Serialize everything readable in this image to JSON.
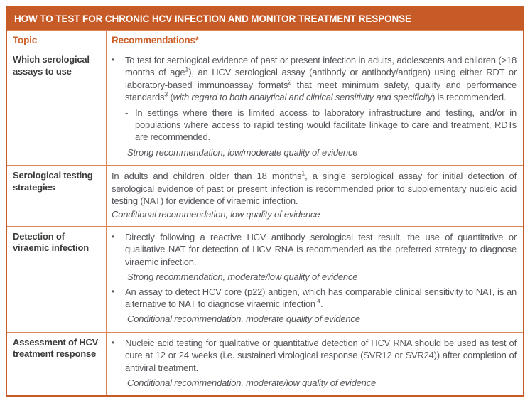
{
  "title": "HOW TO TEST FOR CHRONIC HCV INFECTION AND MONITOR TREATMENT RESPONSE",
  "columns": {
    "topic": "Topic",
    "recommendations": "Recommendations*"
  },
  "markers": {
    "bullet": "•",
    "dash": "-"
  },
  "colors": {
    "orange": "#C75B27",
    "grid_border": "#DE8354",
    "column_header_text": "#CE5F28",
    "body_text": "#53555A",
    "topic_text": "#3B3C3E",
    "title_text": "#FFFFFF"
  },
  "rows": [
    {
      "topic": "Which serological assays to use",
      "items": [
        {
          "type": "bullet",
          "segments": [
            {
              "text": "To test for serological evidence of past or present infection in adults, adolescents and children (>18 months of age"
            },
            {
              "text": "1",
              "sup": true
            },
            {
              "text": "), an HCV serological assay (antibody or antibody/antigen) using either RDT or laboratory-based immunoassay formats"
            },
            {
              "text": "2",
              "sup": true
            },
            {
              "text": " that meet minimum safety, quality and performance standards"
            },
            {
              "text": "3",
              "sup": true
            },
            {
              "text": " ("
            },
            {
              "text": "with regard to both analytical and clinical sensitivity and specificity",
              "italic": true
            },
            {
              "text": ") is recommended."
            }
          ]
        },
        {
          "type": "dash",
          "segments": [
            {
              "text": "In settings where there is limited access to laboratory infrastructure and testing, and/or in populations where access to rapid testing would facilitate linkage to care and treatment, RDTs are recommended."
            }
          ]
        },
        {
          "type": "evidence",
          "segments": [
            {
              "text": "Strong recommendation, low/moderate quality of evidence"
            }
          ]
        }
      ]
    },
    {
      "topic": "Serological testing strategies",
      "items": [
        {
          "type": "plain",
          "segments": [
            {
              "text": "In adults and children older than 18 months"
            },
            {
              "text": "1",
              "sup": true
            },
            {
              "text": ", a single serological assay for initial detection of serological evidence of past or present infection is recommended prior to supplementary nucleic acid testing (NAT) for evidence of viraemic infection."
            }
          ]
        },
        {
          "type": "evidence-flush",
          "segments": [
            {
              "text": "Conditional recommendation, low quality of evidence"
            }
          ]
        }
      ]
    },
    {
      "topic": "Detection of viraemic infection",
      "items": [
        {
          "type": "bullet",
          "segments": [
            {
              "text": "Directly following a reactive HCV antibody serological test result, the use of quantitative or qualitative NAT for detection of HCV RNA is recommended as the preferred strategy to diagnose viraemic infection."
            }
          ]
        },
        {
          "type": "evidence",
          "segments": [
            {
              "text": "Strong recommendation, moderate/low quality of evidence"
            }
          ]
        },
        {
          "type": "bullet",
          "segments": [
            {
              "text": "An assay to detect HCV core (p22) antigen, which has comparable clinical sensitivity to NAT, is an alternative to NAT to diagnose viraemic infection"
            },
            {
              "text": " 4",
              "sup": true
            },
            {
              "text": "."
            }
          ]
        },
        {
          "type": "evidence",
          "segments": [
            {
              "text": "Conditional recommendation, moderate quality of evidence"
            }
          ]
        }
      ]
    },
    {
      "topic": "Assessment of HCV treatment response",
      "items": [
        {
          "type": "bullet",
          "segments": [
            {
              "text": "Nucleic acid testing for qualitative or quantitative detection of HCV RNA should be used as test of cure at 12 or 24 weeks (i.e. sustained virological response (SVR12 or SVR24)) after completion of antiviral treatment."
            }
          ]
        },
        {
          "type": "evidence",
          "segments": [
            {
              "text": "Conditional recommendation, moderate/low quality of evidence"
            }
          ]
        }
      ]
    }
  ]
}
